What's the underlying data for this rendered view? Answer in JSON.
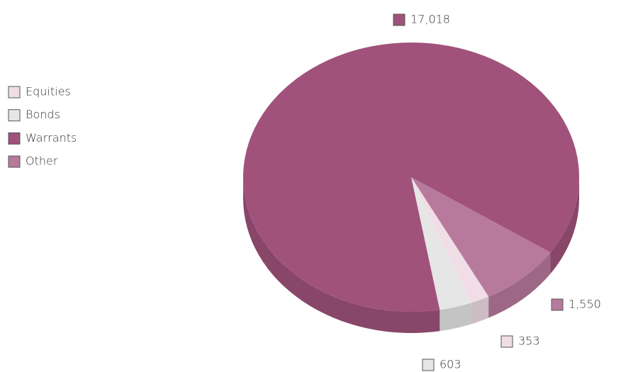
{
  "chart_data": {
    "type": "pie",
    "categories": [
      "Equities",
      "Bonds",
      "Warrants",
      "Other"
    ],
    "values": [
      353,
      603,
      17018,
      1550
    ],
    "value_labels": [
      "353",
      "603",
      "17,018",
      "1,550"
    ],
    "colors": [
      "#f0dde6",
      "#e6e6e6",
      "#a0527b",
      "#b87a9c"
    ],
    "legend": "left"
  }
}
